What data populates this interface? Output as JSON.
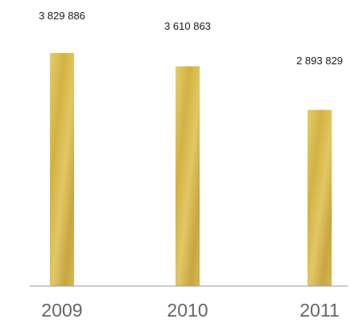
{
  "chart_data": {
    "type": "bar",
    "categories": [
      "2009",
      "2010",
      "2011"
    ],
    "values": [
      3829886,
      3610863,
      2893829
    ],
    "value_labels": [
      "3 829 886",
      "3 610 863",
      "2 893 829"
    ],
    "ylim": [
      0,
      4700000
    ],
    "grid": false,
    "legend": "none",
    "colors": {
      "bar_light": "#f0d878",
      "bar_mid": "#d8b43a",
      "bar_dark": "#b8902a",
      "axis": "#9a9a9a",
      "value_text": "#1a1a1a",
      "tick_text": "#666666"
    }
  }
}
